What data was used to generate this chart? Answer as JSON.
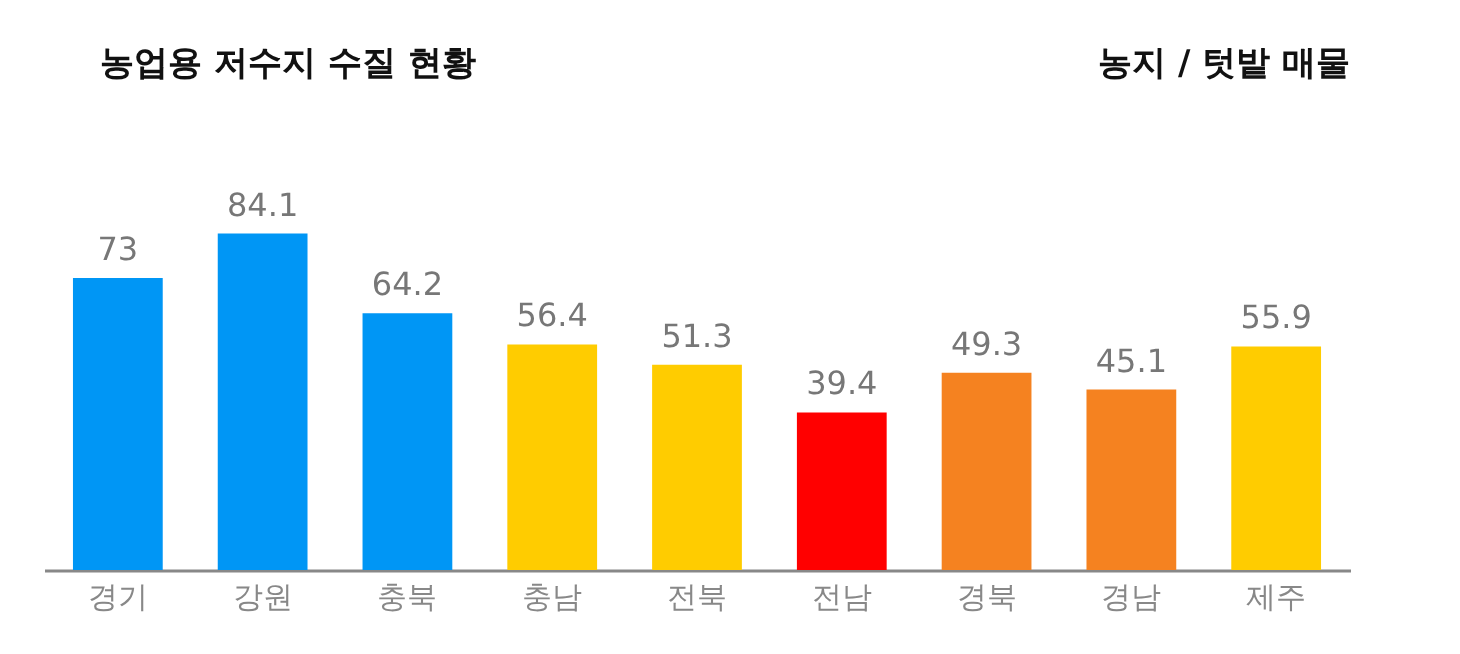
{
  "chart_data": {
    "type": "bar",
    "title": "농업용 저수지 수질 현황",
    "annotations": [
      "농지 / 텃밭 매물"
    ],
    "categories": [
      "경기",
      "강원",
      "충북",
      "충남",
      "전북",
      "전남",
      "경북",
      "경남",
      "제주"
    ],
    "values": [
      73,
      84.1,
      64.2,
      56.4,
      51.3,
      39.4,
      49.3,
      45.1,
      55.9
    ],
    "colors": [
      "#0096f5",
      "#0096f5",
      "#0096f5",
      "#ffcc00",
      "#ffcc00",
      "#ff0000",
      "#f58220",
      "#f58220",
      "#ffcc00"
    ],
    "data_labels": true,
    "grid": false,
    "tick_labels": "x"
  }
}
